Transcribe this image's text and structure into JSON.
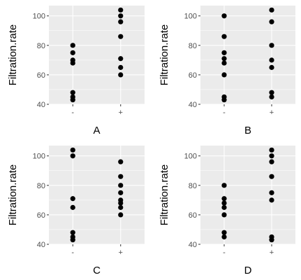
{
  "chart_data": [
    {
      "type": "scatter",
      "title": "",
      "xlabel": "A",
      "ylabel": "Filtration.rate",
      "categories": [
        "-",
        "+"
      ],
      "ylim": [
        40,
        107
      ],
      "yticks": [
        40,
        60,
        80,
        100
      ],
      "grid": true,
      "points": {
        "-": [
          80,
          75,
          70,
          68,
          48,
          45,
          43
        ],
        "+": [
          104,
          100,
          96,
          86,
          71,
          65,
          60
        ]
      }
    },
    {
      "type": "scatter",
      "title": "",
      "xlabel": "B",
      "ylabel": "Filtration.rate",
      "categories": [
        "-",
        "+"
      ],
      "ylim": [
        40,
        107
      ],
      "yticks": [
        40,
        60,
        80,
        100
      ],
      "grid": true,
      "points": {
        "-": [
          100,
          86,
          75,
          71,
          68,
          60,
          45,
          43
        ],
        "+": [
          104,
          96,
          80,
          70,
          65,
          48,
          45
        ]
      }
    },
    {
      "type": "scatter",
      "title": "",
      "xlabel": "C",
      "ylabel": "Filtration.rate",
      "categories": [
        "-",
        "+"
      ],
      "ylim": [
        40,
        107
      ],
      "yticks": [
        40,
        60,
        80,
        100
      ],
      "grid": true,
      "points": {
        "-": [
          104,
          100,
          71,
          65,
          48,
          45,
          43
        ],
        "+": [
          96,
          86,
          80,
          75,
          70,
          68,
          65,
          60
        ]
      }
    },
    {
      "type": "scatter",
      "title": "",
      "xlabel": "D",
      "ylabel": "Filtration.rate",
      "categories": [
        "-",
        "+"
      ],
      "ylim": [
        40,
        107
      ],
      "yticks": [
        40,
        60,
        80,
        100
      ],
      "grid": true,
      "points": {
        "-": [
          80,
          71,
          68,
          65,
          60,
          48,
          45
        ],
        "+": [
          104,
          100,
          96,
          86,
          75,
          70,
          45,
          43
        ]
      }
    }
  ]
}
